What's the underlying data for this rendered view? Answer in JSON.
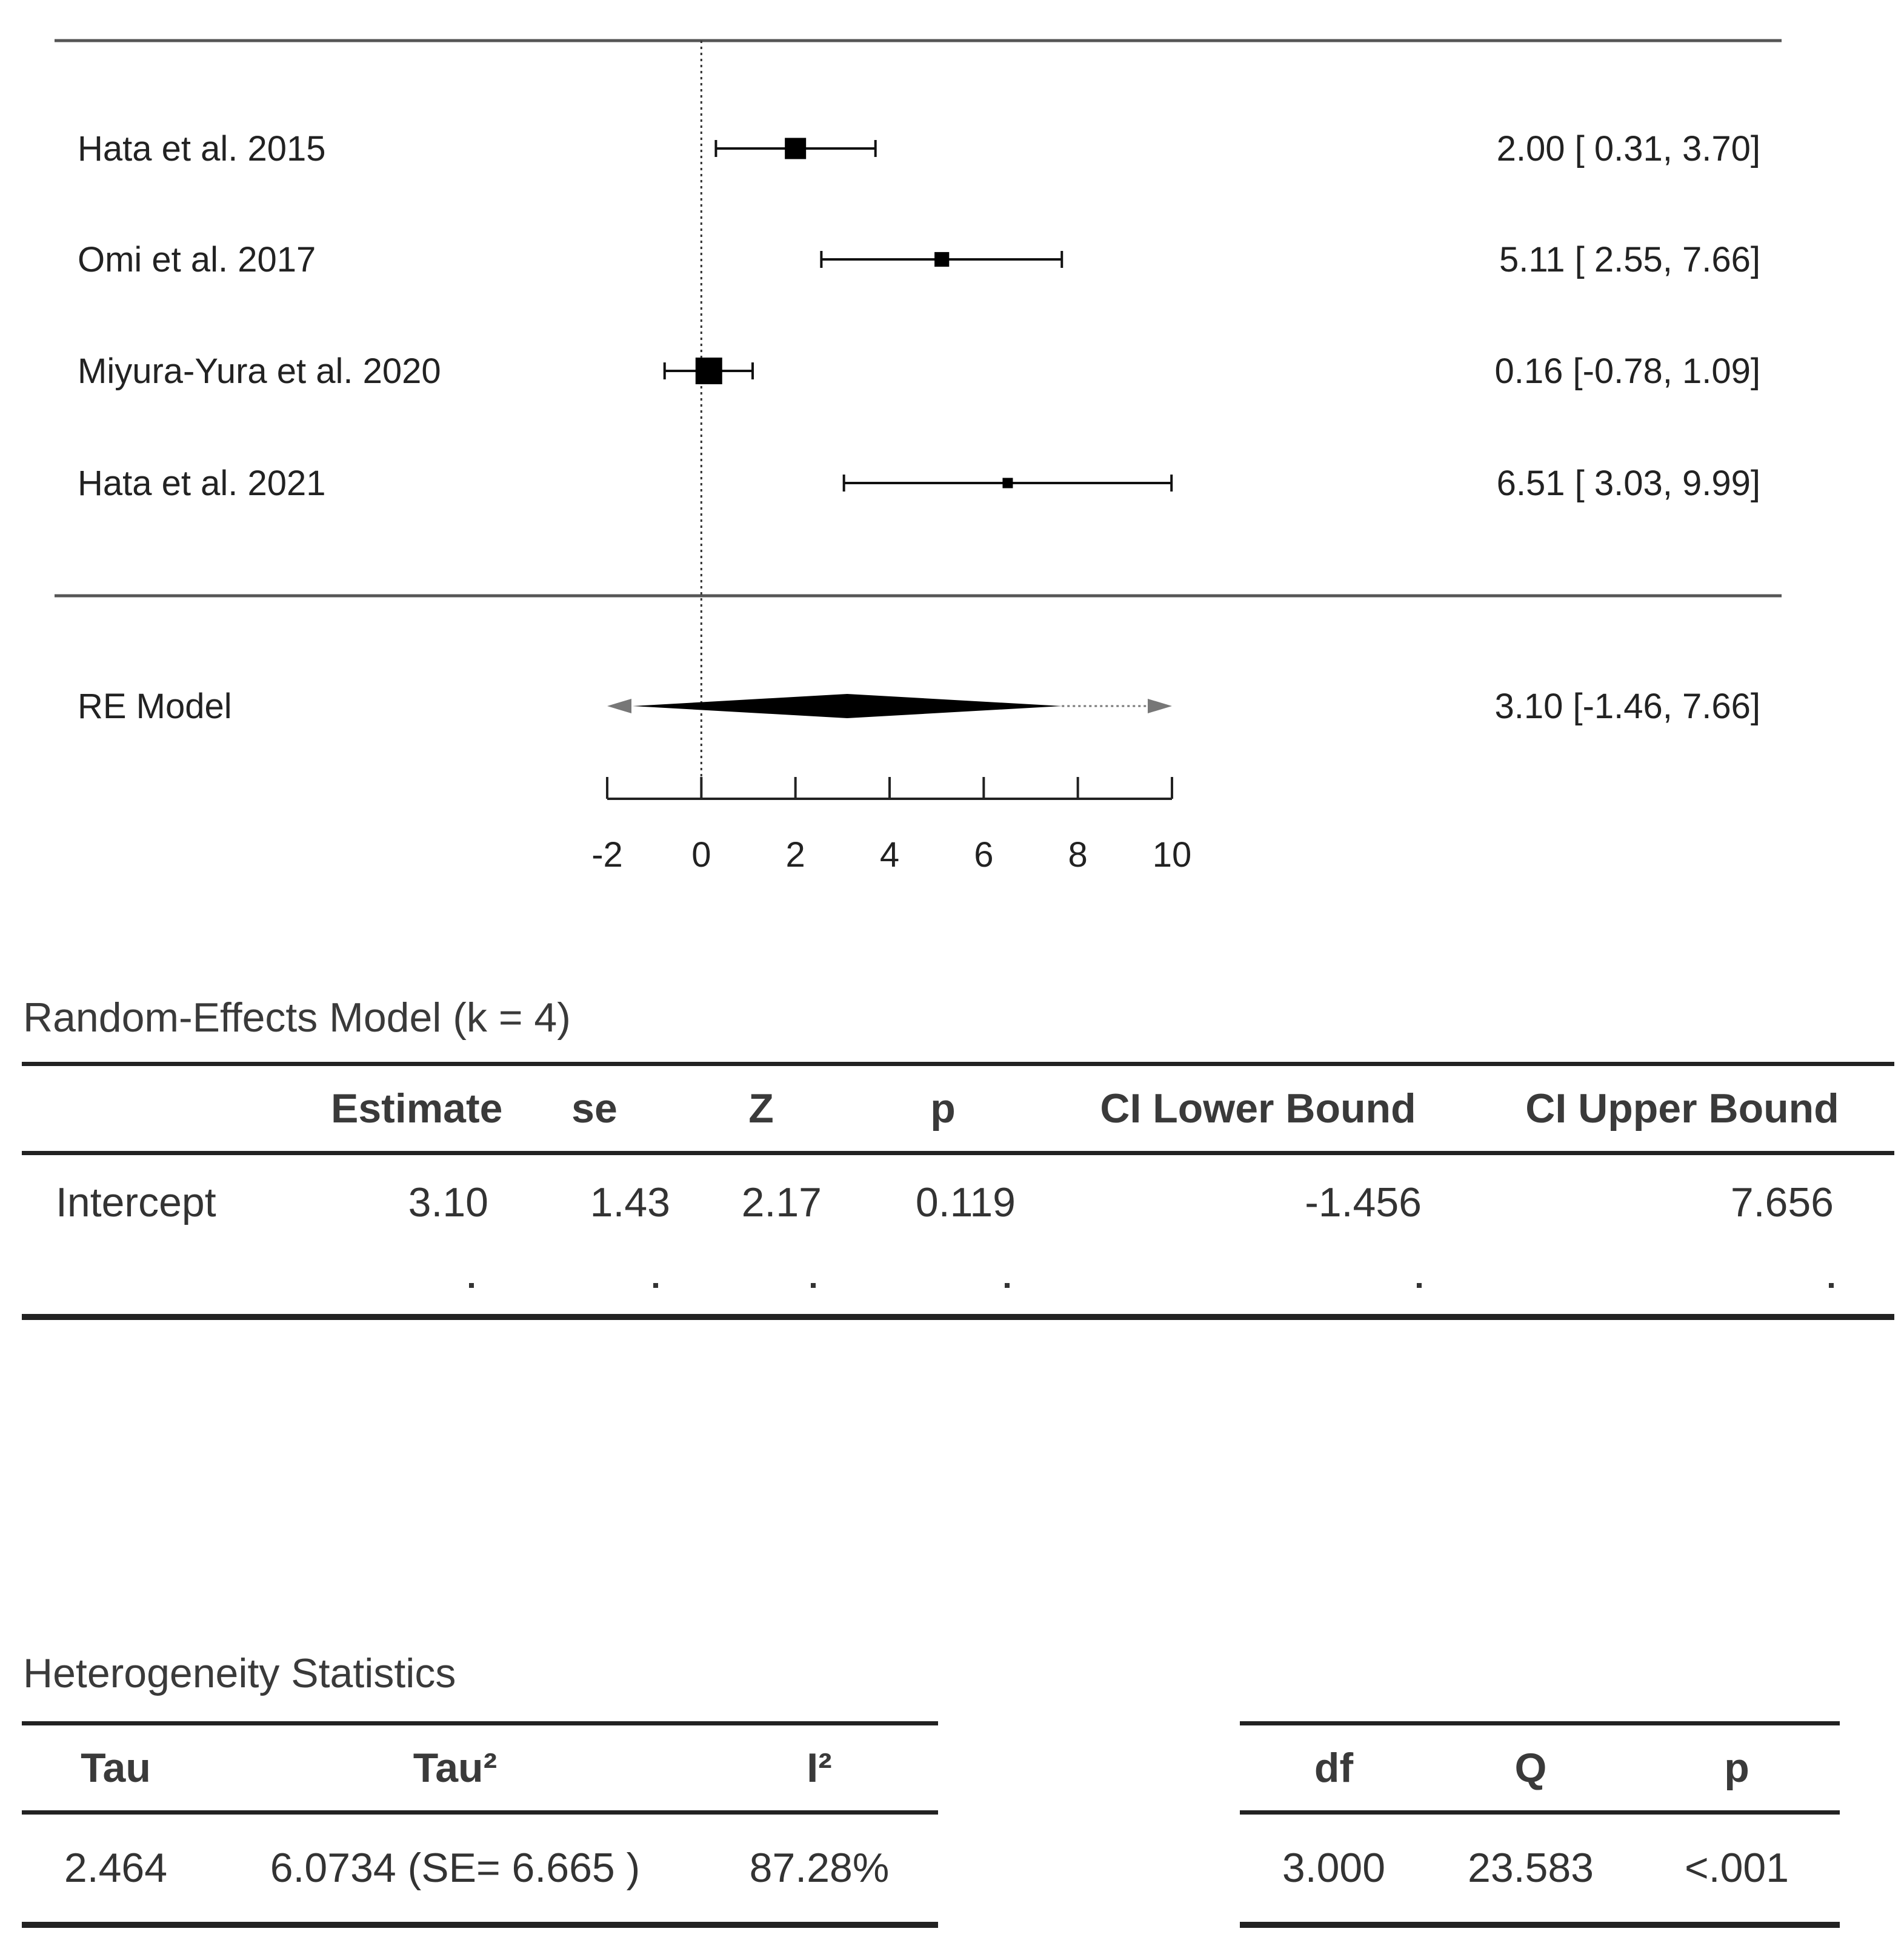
{
  "chart_data": {
    "type": "forest",
    "studies": [
      {
        "label": "Hata et al. 2015",
        "estimate": 2.0,
        "lower": 0.31,
        "upper": 3.7,
        "weight": 0.3,
        "text": "2.00 [ 0.31, 3.70]"
      },
      {
        "label": "Omi et al. 2017",
        "estimate": 5.11,
        "lower": 2.55,
        "upper": 7.66,
        "weight": 0.18,
        "text": "5.11 [ 2.55, 7.66]"
      },
      {
        "label": "Miyura-Yura et al. 2020",
        "estimate": 0.16,
        "lower": -0.78,
        "upper": 1.09,
        "weight": 0.4,
        "text": "0.16 [-0.78, 1.09]"
      },
      {
        "label": "Hata et al. 2021",
        "estimate": 6.51,
        "lower": 3.03,
        "upper": 9.99,
        "weight": 0.1,
        "text": "6.51 [ 3.03, 9.99]"
      }
    ],
    "summary": {
      "label": "RE Model",
      "estimate": 3.1,
      "lower": -1.46,
      "upper": 7.66,
      "text": "3.10 [-1.46, 7.66]"
    },
    "xlim": [
      -2,
      10
    ],
    "ticks": [
      -2,
      0,
      2,
      4,
      6,
      8,
      10
    ],
    "tick_labels": [
      "-2",
      "0",
      "2",
      "4",
      "6",
      "8",
      "10"
    ],
    "reference_line": 0
  },
  "re_model": {
    "title": "Random-Effects Model (k = 4)",
    "headers": [
      "",
      "Estimate",
      "se",
      "Z",
      "p",
      "CI Lower Bound",
      "CI Upper Bound"
    ],
    "row": [
      "Intercept",
      "3.10",
      "1.43",
      "2.17",
      "0.119",
      "-1.456",
      "7.656"
    ]
  },
  "heterogeneity": {
    "title": "Heterogeneity Statistics",
    "left_headers": [
      "Tau",
      "Tau²",
      "I²"
    ],
    "left_row": [
      "2.464",
      "6.0734 (SE= 6.665 )",
      "87.28%"
    ],
    "right_headers": [
      "df",
      "Q",
      "p"
    ],
    "right_row": [
      "3.000",
      "23.583",
      "<.001"
    ]
  }
}
